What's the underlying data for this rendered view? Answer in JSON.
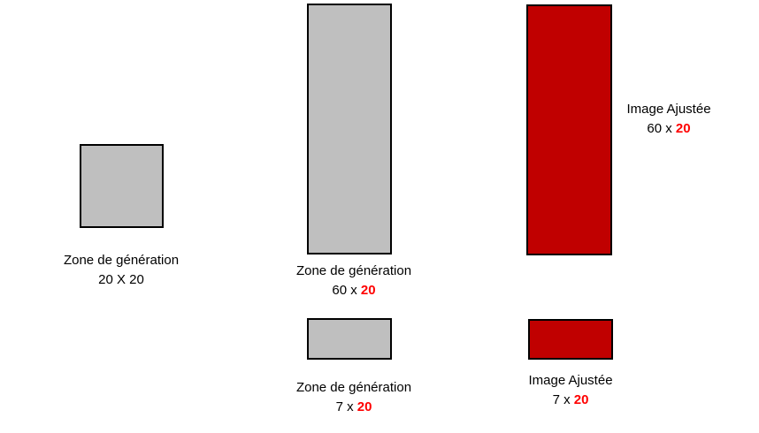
{
  "canvas": {
    "background": "#ffffff"
  },
  "colors": {
    "gray_fill": "#bfbfbf",
    "red_fill": "#c00000",
    "border": "#000000",
    "text": "#000000",
    "highlight_red": "#ff0000"
  },
  "figures": [
    {
      "id": "generation-zone-20x20",
      "shape": "gray-rectangle",
      "label_line1": "Zone de génération",
      "label_line2_text": "20 X 20",
      "label_line2_highlight": ""
    },
    {
      "id": "generation-zone-60x20",
      "shape": "gray-rectangle",
      "label_line1": "Zone de génération",
      "label_line2_text": "60 x ",
      "label_line2_highlight": "20"
    },
    {
      "id": "adjusted-image-60x20",
      "shape": "red-rectangle",
      "label_line1": "Image Ajustée",
      "label_line2_text": "60 x ",
      "label_line2_highlight": "20"
    },
    {
      "id": "generation-zone-7x20",
      "shape": "gray-rectangle",
      "label_line1": "Zone de génération",
      "label_line2_text": "7 x ",
      "label_line2_highlight": "20"
    },
    {
      "id": "adjusted-image-7x20",
      "shape": "red-rectangle",
      "label_line1": "Image Ajustée",
      "label_line2_text": "7 x ",
      "label_line2_highlight": "20"
    }
  ]
}
